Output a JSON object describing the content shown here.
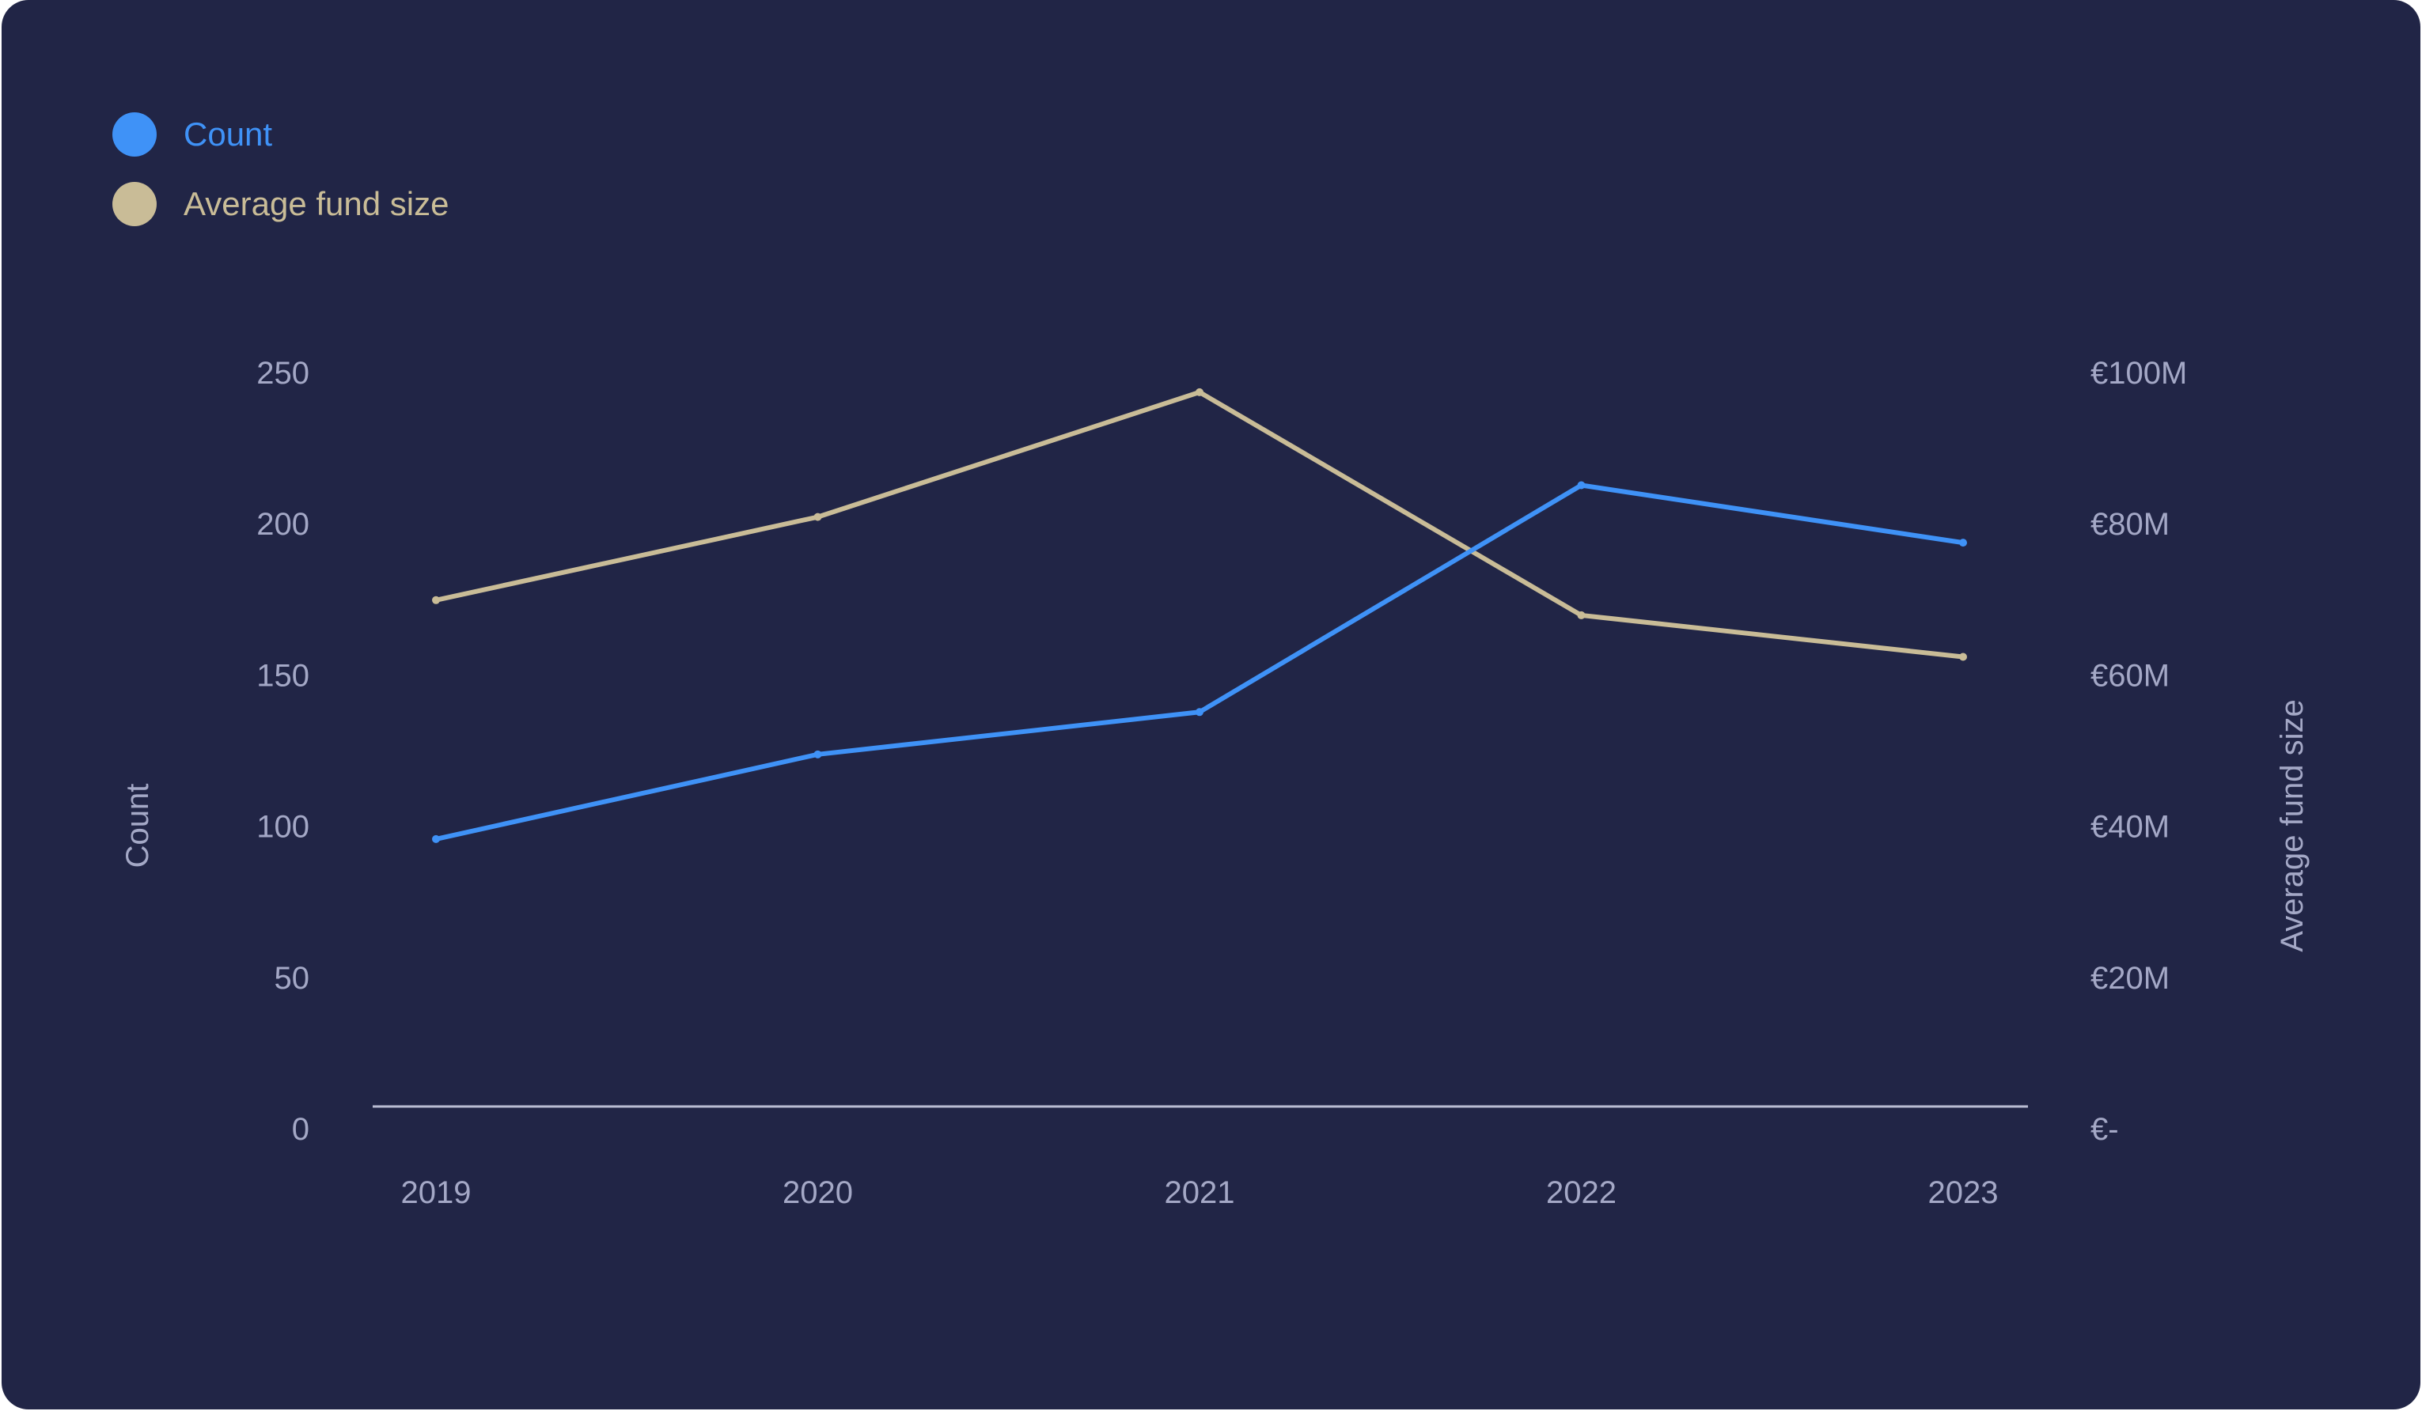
{
  "colors": {
    "background": "#212546",
    "count": "#3F92F7",
    "avg": "#C9BC97",
    "axis_text": "#A4A8C6",
    "baseline": "#B9BCD2"
  },
  "legend": [
    {
      "label": "Count",
      "color": "#3F92F7"
    },
    {
      "label": "Average fund size",
      "color": "#C9BC97"
    }
  ],
  "chart_data": {
    "type": "line",
    "x": [
      "2019",
      "2020",
      "2021",
      "2022",
      "2023"
    ],
    "series": [
      {
        "name": "Count",
        "axis": "left",
        "values": [
          96,
          124,
          138,
          213,
          194
        ]
      },
      {
        "name": "Average fund size",
        "axis": "right",
        "unit": "EUR millions",
        "values": [
          70,
          81,
          97.5,
          68,
          62.5
        ]
      }
    ],
    "y_left": {
      "label": "Count",
      "range": [
        0,
        250
      ],
      "ticks": [
        "250",
        "200",
        "150",
        "100",
        "50",
        "0"
      ],
      "tick_values": [
        250,
        200,
        150,
        100,
        50,
        0
      ]
    },
    "y_right": {
      "label": "Average fund size",
      "range": [
        0,
        100
      ],
      "ticks": [
        "€100M",
        "€80M",
        "€60M",
        "€40M",
        "€20M",
        "€-"
      ],
      "tick_values": [
        100,
        80,
        60,
        40,
        20,
        0
      ]
    },
    "grid": false,
    "legend_position": "top-left"
  }
}
